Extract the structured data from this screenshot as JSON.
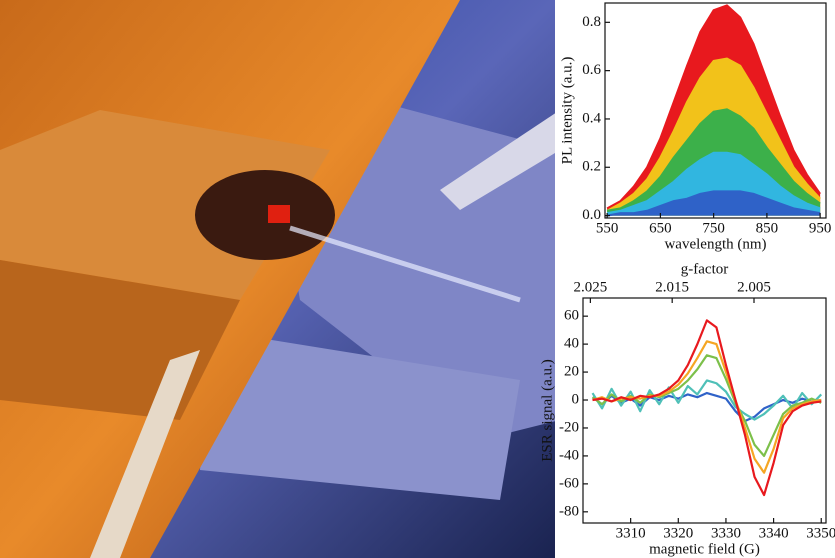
{
  "chart_data": [
    {
      "type": "area",
      "xlabel": "wavelength (nm)",
      "ylabel": "PL intensity (a.u.)",
      "x": [
        550,
        575,
        600,
        625,
        650,
        675,
        700,
        725,
        750,
        775,
        800,
        825,
        850,
        875,
        900,
        925,
        950
      ],
      "series": [
        {
          "color": "#e8191e",
          "values": [
            0.03,
            0.06,
            0.12,
            0.2,
            0.32,
            0.47,
            0.62,
            0.76,
            0.85,
            0.87,
            0.82,
            0.71,
            0.56,
            0.41,
            0.27,
            0.17,
            0.09
          ]
        },
        {
          "color": "#f2c21a",
          "values": [
            0.02,
            0.05,
            0.09,
            0.15,
            0.24,
            0.35,
            0.47,
            0.57,
            0.64,
            0.65,
            0.62,
            0.53,
            0.42,
            0.31,
            0.2,
            0.13,
            0.07
          ]
        },
        {
          "color": "#3cb04a",
          "values": [
            0.02,
            0.03,
            0.06,
            0.1,
            0.16,
            0.24,
            0.31,
            0.38,
            0.43,
            0.44,
            0.41,
            0.36,
            0.28,
            0.21,
            0.14,
            0.09,
            0.05
          ]
        },
        {
          "color": "#31b6e0",
          "values": [
            0.01,
            0.02,
            0.04,
            0.06,
            0.1,
            0.14,
            0.19,
            0.23,
            0.26,
            0.26,
            0.25,
            0.21,
            0.17,
            0.12,
            0.08,
            0.05,
            0.03
          ]
        },
        {
          "color": "#2f62c8",
          "values": [
            0,
            0.01,
            0.01,
            0.02,
            0.04,
            0.06,
            0.07,
            0.09,
            0.1,
            0.1,
            0.1,
            0.09,
            0.07,
            0.05,
            0.03,
            0.02,
            0.01
          ]
        }
      ],
      "xlim": [
        546,
        961
      ],
      "xticks": [
        550,
        650,
        750,
        850,
        950
      ],
      "ylim": [
        -0.01,
        0.88
      ],
      "yticks": [
        {
          "value": 0,
          "label": "0.0"
        },
        0.2,
        0.4,
        0.6,
        0.8
      ]
    },
    {
      "type": "line",
      "xlabel": "magnetic field (G)",
      "ylabel": "ESR signal (a.u.)",
      "x2label": "g-factor",
      "x": [
        3302,
        3304,
        3306,
        3308,
        3310,
        3312,
        3314,
        3316,
        3318,
        3320,
        3322,
        3324,
        3326,
        3328,
        3330,
        3332,
        3334,
        3336,
        3338,
        3340,
        3342,
        3344,
        3346,
        3348,
        3350
      ],
      "series": [
        {
          "color": "#2f62c8",
          "values": [
            2,
            -3,
            3,
            -2,
            1,
            -4,
            2,
            0,
            3,
            1,
            4,
            2,
            5,
            3,
            1,
            -8,
            -15,
            -12,
            -6,
            -3,
            0,
            -2,
            1,
            -1,
            0
          ]
        },
        {
          "color": "#4fc0b8",
          "values": [
            5,
            -6,
            8,
            -4,
            6,
            -8,
            7,
            -3,
            9,
            -2,
            10,
            4,
            14,
            12,
            6,
            -5,
            -10,
            -14,
            -10,
            -4,
            3,
            -6,
            5,
            -3,
            4
          ]
        },
        {
          "color": "#7cc04a",
          "values": [
            2,
            -3,
            4,
            -1,
            3,
            -2,
            4,
            2,
            5,
            8,
            14,
            22,
            32,
            30,
            15,
            -2,
            -15,
            -32,
            -40,
            -25,
            -10,
            -4,
            -2,
            1,
            -2
          ]
        },
        {
          "color": "#f5a623",
          "values": [
            0,
            2,
            -1,
            1,
            2,
            1,
            3,
            3,
            6,
            11,
            19,
            30,
            42,
            40,
            20,
            0,
            -20,
            -42,
            -52,
            -35,
            -13,
            -6,
            -3,
            -1,
            0
          ]
        },
        {
          "color": "#e8191e",
          "values": [
            0,
            1,
            -1,
            2,
            0,
            3,
            2,
            4,
            8,
            14,
            25,
            40,
            57,
            52,
            25,
            0,
            -25,
            -55,
            -68,
            -45,
            -18,
            -8,
            -4,
            -2,
            -1
          ]
        }
      ],
      "xlim": [
        3300,
        3351
      ],
      "xticks": [
        3310,
        3320,
        3330,
        3340,
        3350
      ],
      "ylim": [
        -88,
        73
      ],
      "yticks": [
        -80,
        -60,
        -40,
        -20,
        0,
        20,
        40,
        60
      ],
      "x2lim": [
        2.0259,
        1.9962
      ],
      "x2ticks": [
        2.025,
        2.015,
        2.005
      ]
    }
  ]
}
